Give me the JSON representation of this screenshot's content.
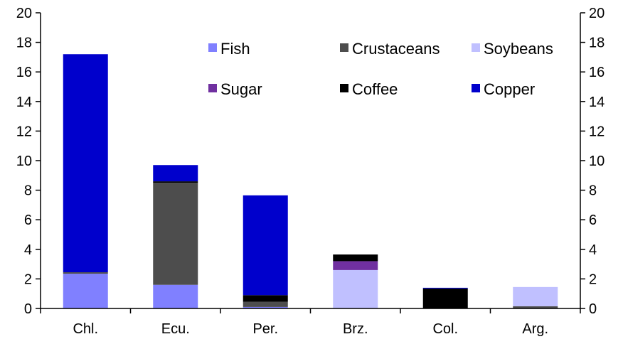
{
  "chart_data": {
    "type": "bar",
    "stacked": true,
    "categories": [
      "Chl.",
      "Ecu.",
      "Per.",
      "Brz.",
      "Col.",
      "Arg."
    ],
    "ylim": [
      0,
      20
    ],
    "yticks": [
      0,
      2,
      4,
      6,
      8,
      10,
      12,
      14,
      16,
      18,
      20
    ],
    "y_axes": [
      "left",
      "right"
    ],
    "grid": false,
    "legend_position": "top",
    "series": [
      {
        "name": "Fish",
        "color": "#8080ff",
        "values": [
          2.35,
          1.6,
          0.1,
          0.0,
          0.0,
          0.0
        ]
      },
      {
        "name": "Crustaceans",
        "color": "#4d4d4d",
        "values": [
          0.1,
          6.9,
          0.35,
          0.0,
          0.0,
          0.15
        ]
      },
      {
        "name": "Soybeans",
        "color": "#c0c0ff",
        "values": [
          0.0,
          0.0,
          0.0,
          2.6,
          0.0,
          1.3
        ]
      },
      {
        "name": "Sugar",
        "color": "#7030a0",
        "values": [
          0.0,
          0.0,
          0.0,
          0.6,
          0.0,
          0.0
        ]
      },
      {
        "name": "Coffee",
        "color": "#000000",
        "values": [
          0.0,
          0.1,
          0.45,
          0.45,
          1.35,
          0.0
        ]
      },
      {
        "name": "Copper",
        "color": "#0000cc",
        "values": [
          14.75,
          1.1,
          6.75,
          0.0,
          0.05,
          0.0
        ]
      }
    ]
  }
}
